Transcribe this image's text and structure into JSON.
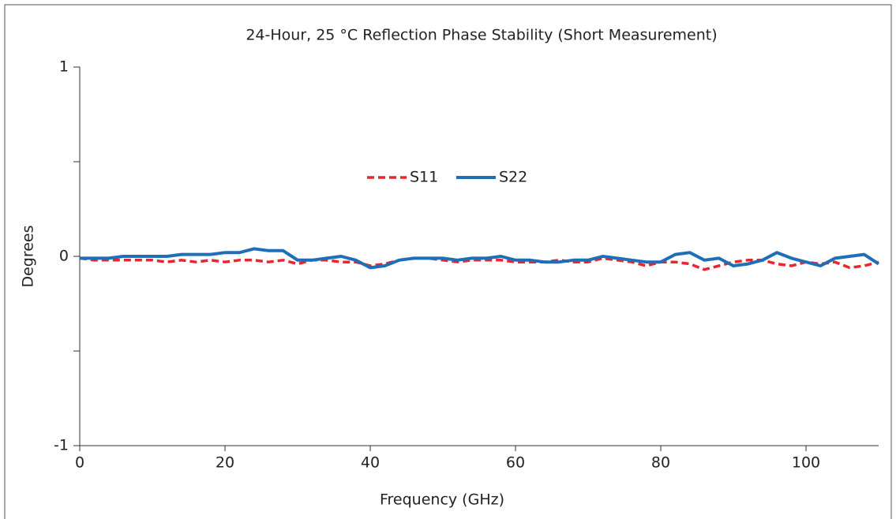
{
  "chart_data": {
    "type": "line",
    "title": "24-Hour, 25 °C Reflection Phase Stability (Short Measurement)",
    "x_label": "Frequency (GHz)",
    "y_label": "Degrees",
    "x": [
      0,
      2,
      4,
      6,
      8,
      10,
      12,
      14,
      16,
      18,
      20,
      22,
      24,
      26,
      28,
      30,
      32,
      34,
      36,
      38,
      40,
      42,
      44,
      46,
      48,
      50,
      52,
      54,
      56,
      58,
      60,
      62,
      64,
      66,
      68,
      70,
      72,
      74,
      76,
      78,
      80,
      82,
      84,
      86,
      88,
      90,
      92,
      94,
      96,
      98,
      100,
      102,
      104,
      106,
      108,
      110
    ],
    "series": [
      {
        "name": "S11",
        "color": "#e8262f",
        "line_style": "dashed",
        "values": [
          -0.01,
          -0.02,
          -0.02,
          -0.02,
          -0.02,
          -0.02,
          -0.03,
          -0.02,
          -0.03,
          -0.02,
          -0.03,
          -0.02,
          -0.02,
          -0.03,
          -0.02,
          -0.04,
          -0.02,
          -0.02,
          -0.03,
          -0.03,
          -0.05,
          -0.04,
          -0.02,
          -0.01,
          -0.01,
          -0.02,
          -0.03,
          -0.02,
          -0.02,
          -0.02,
          -0.03,
          -0.03,
          -0.03,
          -0.02,
          -0.03,
          -0.03,
          -0.01,
          -0.02,
          -0.03,
          -0.05,
          -0.03,
          -0.03,
          -0.04,
          -0.07,
          -0.05,
          -0.03,
          -0.02,
          -0.02,
          -0.04,
          -0.05,
          -0.03,
          -0.04,
          -0.03,
          -0.06,
          -0.05,
          -0.03
        ]
      },
      {
        "name": "S22",
        "color": "#1f6fb8",
        "line_style": "solid",
        "values": [
          -0.01,
          -0.01,
          -0.01,
          0,
          0,
          0,
          0,
          0.01,
          0.01,
          0.01,
          0.02,
          0.02,
          0.04,
          0.03,
          0.03,
          -0.02,
          -0.02,
          -0.01,
          0,
          -0.02,
          -0.06,
          -0.05,
          -0.02,
          -0.01,
          -0.01,
          -0.01,
          -0.02,
          -0.01,
          -0.01,
          0,
          -0.02,
          -0.02,
          -0.03,
          -0.03,
          -0.02,
          -0.02,
          0,
          -0.01,
          -0.02,
          -0.03,
          -0.03,
          0.01,
          0.02,
          -0.02,
          -0.01,
          -0.05,
          -0.04,
          -0.02,
          0.02,
          -0.01,
          -0.03,
          -0.05,
          -0.01,
          0,
          0.01,
          -0.04
        ]
      }
    ],
    "xlim": [
      0,
      110
    ],
    "xticks": [
      0,
      20,
      40,
      60,
      80,
      100
    ],
    "ylim": [
      -1,
      1
    ],
    "yticks": [
      -1,
      0,
      1
    ],
    "yticks_minor": [
      -0.5,
      0.5
    ],
    "grid": false,
    "legend": "top"
  }
}
